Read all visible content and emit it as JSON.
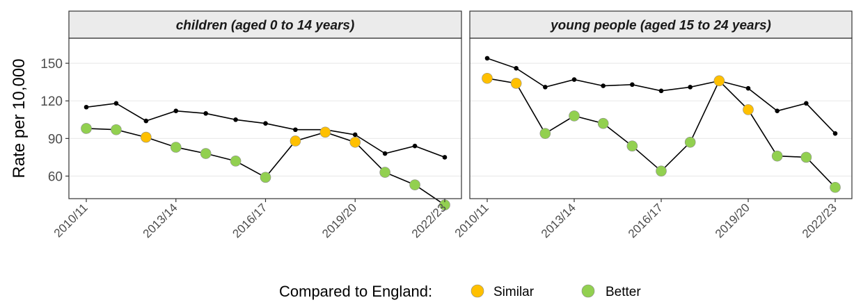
{
  "chart_data": {
    "type": "line",
    "ylabel": "Rate per 10,000",
    "xlabel": "",
    "ylim": [
      42,
      170
    ],
    "yticks": [
      60,
      90,
      120,
      150
    ],
    "grid": true,
    "x": [
      "2010/11",
      "2011/12",
      "2012/13",
      "2013/14",
      "2014/15",
      "2015/16",
      "2016/17",
      "2017/18",
      "2018/19",
      "2019/20",
      "2020/21",
      "2021/22",
      "2022/23"
    ],
    "xtick_labels": [
      "2010/11",
      "2013/14",
      "2016/17",
      "2019/20",
      "2022/23"
    ],
    "legend": {
      "title": "Compared to England:",
      "position": "bottom",
      "entries": [
        {
          "label": "Similar",
          "color": "#FFC000"
        },
        {
          "label": "Better",
          "color": "#92D050"
        }
      ]
    },
    "panels": [
      {
        "title": "children (aged 0 to 14 years)",
        "series": [
          {
            "values": [
              115,
              118,
              104,
              112,
              110,
              105,
              102,
              97,
              97,
              93,
              78,
              84,
              75
            ],
            "style": "black-dots"
          },
          {
            "values": [
              98,
              97,
              91,
              83,
              78,
              72,
              59,
              88,
              95,
              87,
              63,
              53,
              37
            ],
            "style": "colored-points",
            "comparison": [
              "Better",
              "Better",
              "Similar",
              "Better",
              "Better",
              "Better",
              "Better",
              "Similar",
              "Similar",
              "Similar",
              "Better",
              "Better",
              "Better"
            ]
          }
        ]
      },
      {
        "title": "young people (aged 15 to 24 years)",
        "series": [
          {
            "values": [
              154,
              146,
              131,
              137,
              132,
              133,
              128,
              131,
              136,
              130,
              112,
              118,
              94
            ],
            "style": "black-dots"
          },
          {
            "values": [
              138,
              134,
              94,
              108,
              102,
              84,
              64,
              87,
              136,
              113,
              76,
              75,
              51
            ],
            "style": "colored-points",
            "comparison": [
              "Similar",
              "Similar",
              "Better",
              "Better",
              "Better",
              "Better",
              "Better",
              "Better",
              "Similar",
              "Similar",
              "Better",
              "Better",
              "Better"
            ]
          }
        ]
      }
    ]
  },
  "colors": {
    "similar": "#FFC000",
    "better": "#92D050",
    "line": "#000000",
    "strip_fill": "#EBEBEB",
    "grid": "#EBEBEB"
  }
}
